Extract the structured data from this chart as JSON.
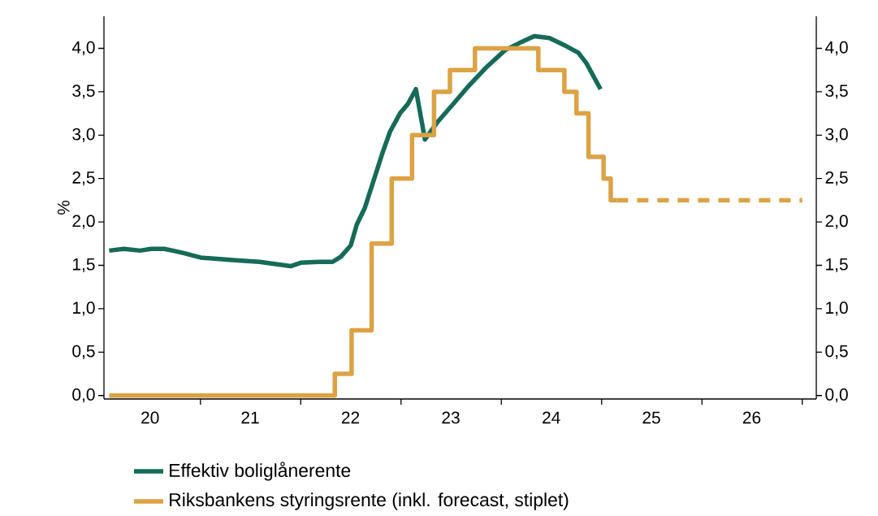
{
  "chart_data": {
    "type": "line",
    "ylabel": "%",
    "xlim": [
      "2020-01-15",
      "2027-02-21"
    ],
    "xticks": [
      {
        "value": "2021-01-01",
        "label": null
      },
      {
        "value": "2022-01-01",
        "label": null
      },
      {
        "value": "2023-01-01",
        "label": null
      },
      {
        "value": "2024-01-01",
        "label": null
      },
      {
        "value": "2025-01-01",
        "label": null
      },
      {
        "value": "2026-01-01",
        "label": null
      },
      {
        "value": "2027-01-01",
        "label": null
      },
      {
        "value": "2020-07-01",
        "label": "20"
      },
      {
        "value": "2021-07-01",
        "label": "21"
      },
      {
        "value": "2022-07-01",
        "label": "22"
      },
      {
        "value": "2023-07-01",
        "label": "23"
      },
      {
        "value": "2024-07-01",
        "label": "24"
      },
      {
        "value": "2025-07-01",
        "label": "25"
      },
      {
        "value": "2026-07-01",
        "label": "26"
      }
    ],
    "ylim": [
      -0.04,
      4.37
    ],
    "yticks": [
      {
        "value": 0,
        "label": "0,0"
      },
      {
        "value": 0.5,
        "label": "0,5"
      },
      {
        "value": 1,
        "label": "1,0"
      },
      {
        "value": 1.5,
        "label": "1,5"
      },
      {
        "value": 2,
        "label": "2,0"
      },
      {
        "value": 2.5,
        "label": "2,5"
      },
      {
        "value": 3,
        "label": "3,0"
      },
      {
        "value": 3.5,
        "label": "3,5"
      },
      {
        "value": 4,
        "label": "4,0"
      }
    ],
    "y2lim": [
      -0.04,
      4.37
    ],
    "y2ticks": [
      {
        "value": 0,
        "label": "0,0"
      },
      {
        "value": 0.5,
        "label": "0,5"
      },
      {
        "value": 1,
        "label": "1,0"
      },
      {
        "value": 1.5,
        "label": "1,5"
      },
      {
        "value": 2,
        "label": "2,0"
      },
      {
        "value": 2.5,
        "label": "2,5"
      },
      {
        "value": 3,
        "label": "3,0"
      },
      {
        "value": 3.5,
        "label": "3,5"
      },
      {
        "value": 4,
        "label": "4,0"
      }
    ],
    "grid": false,
    "legend": "bottom",
    "marker": "none",
    "series": [
      {
        "name": "Effektiv boliglånerente",
        "color": "#166b58",
        "line_style": "solid",
        "x": [
          "2020-02-03",
          "2020-03-28",
          "2020-05-26",
          "2020-07-05",
          "2020-08-22",
          "2020-10-05",
          "2020-11-03",
          "2021-01-01",
          "2021-04-27",
          "2021-08-04",
          "2021-11-25",
          "2022-01-01",
          "2022-03-08",
          "2022-04-27",
          "2022-05-27",
          "2022-07-02",
          "2022-07-24",
          "2022-08-22",
          "2022-10-27",
          "2022-11-22",
          "2022-12-28",
          "2023-01-26",
          "2023-02-24",
          "2023-03-29",
          "2023-05-16",
          "2023-07-13",
          "2023-09-02",
          "2023-11-10",
          "2024-01-15",
          "2024-03-06",
          "2024-04-30",
          "2024-06-24",
          "2024-08-22",
          "2024-10-08",
          "2024-11-06",
          "2024-12-28"
        ],
        "values": [
          1.67,
          1.69,
          1.67,
          1.69,
          1.69,
          1.66,
          1.64,
          1.59,
          1.56,
          1.54,
          1.49,
          1.53,
          1.54,
          1.54,
          1.6,
          1.73,
          1.97,
          2.16,
          2.81,
          3.04,
          3.25,
          3.36,
          3.53,
          2.95,
          3.16,
          3.37,
          3.56,
          3.79,
          3.98,
          4.06,
          4.14,
          4.12,
          4.03,
          3.95,
          3.83,
          3.53
        ]
      },
      {
        "name": "Riksbankens styringsrente (inkl. forecast, stiplet)",
        "color": "#dca244",
        "type": "step",
        "line_style": "solid",
        "x": [
          "2020-02-03",
          "2022-05-05",
          "2022-07-05",
          "2022-09-16",
          "2022-11-28",
          "2023-02-10",
          "2023-05-01",
          "2023-06-28",
          "2023-09-27",
          "2024-05-15",
          "2024-08-18",
          "2024-10-01",
          "2024-11-14",
          "2025-01-08",
          "2025-02-03",
          "2025-02-25"
        ],
        "values": [
          0,
          0.25,
          0.75,
          1.75,
          2.5,
          3.0,
          3.5,
          3.75,
          4.0,
          3.75,
          3.5,
          3.25,
          2.75,
          2.5,
          2.25,
          2.25
        ]
      },
      {
        "color": "#dca244",
        "type": "step",
        "line_style": "dashed",
        "x": [
          "2025-02-25",
          "2027-01-01"
        ],
        "values": [
          2.25,
          2.25
        ]
      }
    ]
  }
}
